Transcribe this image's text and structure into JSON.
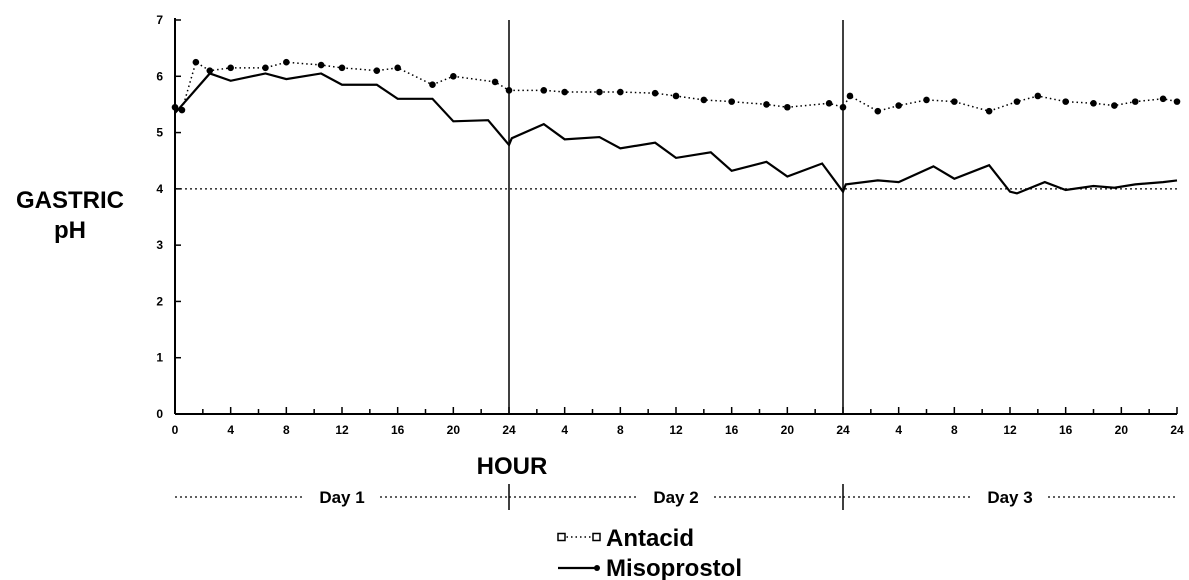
{
  "chart_data": {
    "type": "line",
    "ylabel_lines": [
      "GASTRIC",
      "pH"
    ],
    "xlabel": "HOUR",
    "ylim": [
      0,
      7
    ],
    "yticks": [
      "0",
      "1",
      "2",
      "3",
      "4",
      "5",
      "6",
      "7"
    ],
    "xlim": [
      0,
      72
    ],
    "xtick_labels": [
      "0",
      "4",
      "8",
      "12",
      "16",
      "20",
      "24",
      "4",
      "8",
      "12",
      "16",
      "20",
      "24",
      "4",
      "8",
      "12",
      "16",
      "20",
      "24"
    ],
    "day_boundaries": [
      24,
      48
    ],
    "days": [
      "Day 1",
      "Day 2",
      "Day 3"
    ],
    "reference_line": 4,
    "grid": false,
    "legend_position": "bottom-center",
    "series": [
      {
        "name": "Antacid",
        "style": "dotted-markers",
        "x": [
          0,
          0.5,
          1.5,
          2.5,
          4,
          6.5,
          8,
          10.5,
          12,
          14.5,
          16,
          18.5,
          20,
          23,
          24,
          26.5,
          28,
          30.5,
          32,
          34.5,
          36,
          38,
          40,
          42.5,
          44,
          47,
          48,
          48.5,
          50.5,
          52,
          54,
          56,
          58.5,
          60.5,
          62,
          64,
          66,
          67.5,
          69,
          71,
          72
        ],
        "y": [
          5.45,
          5.4,
          6.25,
          6.1,
          6.15,
          6.15,
          6.25,
          6.2,
          6.15,
          6.1,
          6.15,
          5.85,
          6.0,
          5.9,
          5.75,
          5.75,
          5.72,
          5.72,
          5.72,
          5.7,
          5.65,
          5.58,
          5.55,
          5.5,
          5.45,
          5.52,
          5.45,
          5.65,
          5.38,
          5.48,
          5.58,
          5.55,
          5.38,
          5.55,
          5.65,
          5.55,
          5.52,
          5.48,
          5.55,
          5.6,
          5.55
        ]
      },
      {
        "name": "Misoprostol",
        "style": "solid",
        "x": [
          0,
          0.2,
          2.5,
          4,
          6.5,
          8,
          10.5,
          12,
          14.5,
          16,
          18.5,
          20,
          22.5,
          24,
          24.2,
          26.5,
          28,
          30.5,
          32,
          34.5,
          36,
          38.5,
          40,
          42.5,
          44,
          46.5,
          48,
          48.2,
          50.5,
          52,
          54.5,
          56,
          58.5,
          60,
          60.5,
          62.5,
          64,
          66,
          67.5,
          69,
          71,
          72
        ],
        "y": [
          5.35,
          5.4,
          6.05,
          5.92,
          6.05,
          5.95,
          6.05,
          5.85,
          5.85,
          5.6,
          5.6,
          5.2,
          5.22,
          4.78,
          4.9,
          5.15,
          4.88,
          4.92,
          4.72,
          4.82,
          4.55,
          4.65,
          4.32,
          4.48,
          4.22,
          4.45,
          3.95,
          4.08,
          4.15,
          4.12,
          4.4,
          4.18,
          4.42,
          3.95,
          3.92,
          4.12,
          3.98,
          4.05,
          4.02,
          4.08,
          4.12,
          4.15
        ]
      }
    ]
  }
}
